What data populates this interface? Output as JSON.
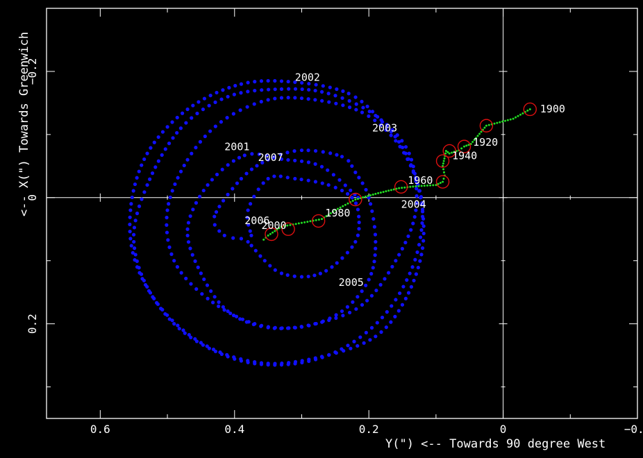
{
  "chart_data": {
    "type": "scatter",
    "xlabel": "Y(\") <-- Towards 90 degree West",
    "ylabel": "<-- X(\") Towards Greenwich",
    "xlim": [
      0.68,
      -0.2
    ],
    "ylim": [
      -0.3,
      0.35
    ],
    "x_ticks": [
      {
        "value": 0.6,
        "label": "0.6"
      },
      {
        "value": 0.4,
        "label": "0.4"
      },
      {
        "value": 0.2,
        "label": "0.2"
      },
      {
        "value": 0,
        "label": "0"
      },
      {
        "value": -0.2,
        "label": "−0.2"
      }
    ],
    "y_ticks": [
      {
        "value": -0.2,
        "label": "−0.2"
      },
      {
        "value": 0,
        "label": "0"
      },
      {
        "value": 0.2,
        "label": "0.2"
      }
    ],
    "grid": "zero-lines",
    "colors": {
      "polar_motion": "#1010ff",
      "secular_drift": "#22dd22",
      "markers": "#dd1010",
      "axes": "#ffffff",
      "background": "#000000"
    },
    "spiral_control": [
      [
        0.216,
        0.0
      ],
      [
        0.27,
        -0.049
      ],
      [
        0.33,
        -0.061
      ],
      [
        0.385,
        -0.067
      ],
      [
        0.44,
        -0.02
      ],
      [
        0.47,
        0.05
      ],
      [
        0.45,
        0.12
      ],
      [
        0.41,
        0.18
      ],
      [
        0.35,
        0.206
      ],
      [
        0.28,
        0.2
      ],
      [
        0.21,
        0.17
      ],
      [
        0.16,
        0.1
      ],
      [
        0.13,
        0.02
      ],
      [
        0.14,
        -0.07
      ],
      [
        0.19,
        -0.13
      ],
      [
        0.26,
        -0.165
      ],
      [
        0.33,
        -0.172
      ],
      [
        0.41,
        -0.16
      ],
      [
        0.48,
        -0.11
      ],
      [
        0.53,
        -0.02
      ],
      [
        0.55,
        0.07
      ],
      [
        0.52,
        0.16
      ],
      [
        0.45,
        0.23
      ],
      [
        0.36,
        0.262
      ],
      [
        0.27,
        0.252
      ],
      [
        0.19,
        0.22
      ],
      [
        0.145,
        0.16
      ],
      [
        0.12,
        0.08
      ],
      [
        0.123,
        0.0
      ],
      [
        0.145,
        -0.07
      ],
      [
        0.18,
        -0.12
      ],
      [
        0.23,
        -0.165
      ],
      [
        0.31,
        -0.183
      ],
      [
        0.39,
        -0.18
      ],
      [
        0.47,
        -0.14
      ],
      [
        0.53,
        -0.07
      ],
      [
        0.555,
        0.02
      ],
      [
        0.545,
        0.11
      ],
      [
        0.49,
        0.2
      ],
      [
        0.41,
        0.252
      ],
      [
        0.33,
        0.265
      ],
      [
        0.25,
        0.245
      ],
      [
        0.18,
        0.19
      ],
      [
        0.135,
        0.11
      ],
      [
        0.12,
        0.03
      ],
      [
        0.13,
        -0.03
      ],
      [
        0.16,
        -0.09
      ],
      [
        0.21,
        -0.135
      ],
      [
        0.28,
        -0.155
      ],
      [
        0.35,
        -0.155
      ],
      [
        0.42,
        -0.12
      ],
      [
        0.47,
        -0.06
      ],
      [
        0.5,
        0.02
      ],
      [
        0.49,
        0.1
      ],
      [
        0.44,
        0.16
      ],
      [
        0.37,
        0.2
      ],
      [
        0.3,
        0.205
      ],
      [
        0.24,
        0.18
      ],
      [
        0.2,
        0.13
      ],
      [
        0.19,
        0.07
      ],
      [
        0.2,
        0.0
      ],
      [
        0.22,
        -0.04
      ],
      [
        0.24,
        -0.065
      ],
      [
        0.3,
        -0.075
      ],
      [
        0.35,
        -0.06
      ],
      [
        0.39,
        -0.03
      ],
      [
        0.43,
        0.03
      ],
      [
        0.415,
        0.06
      ],
      [
        0.39,
        0.065
      ],
      [
        0.38,
        0.07
      ],
      [
        0.355,
        0.1
      ],
      [
        0.33,
        0.12
      ],
      [
        0.29,
        0.125
      ],
      [
        0.255,
        0.11
      ],
      [
        0.22,
        0.07
      ],
      [
        0.215,
        0.03
      ],
      [
        0.225,
        0.0
      ],
      [
        0.26,
        -0.02
      ],
      [
        0.31,
        -0.03
      ],
      [
        0.35,
        -0.03
      ],
      [
        0.38,
        0.02
      ],
      [
        0.375,
        0.06
      ]
    ],
    "drift_path": [
      [
        -0.04,
        -0.14
      ],
      [
        -0.015,
        -0.125
      ],
      [
        0.025,
        -0.114
      ],
      [
        0.048,
        -0.085
      ],
      [
        0.058,
        -0.081
      ],
      [
        0.066,
        -0.075
      ],
      [
        0.08,
        -0.07
      ],
      [
        0.085,
        -0.074
      ],
      [
        0.09,
        -0.05
      ],
      [
        0.087,
        -0.035
      ],
      [
        0.09,
        -0.025
      ],
      [
        0.1,
        -0.02
      ],
      [
        0.13,
        -0.018
      ],
      [
        0.155,
        -0.015
      ],
      [
        0.19,
        -0.006
      ],
      [
        0.22,
        0.003
      ],
      [
        0.25,
        0.02
      ],
      [
        0.27,
        0.034
      ],
      [
        0.3,
        0.04
      ],
      [
        0.33,
        0.046
      ],
      [
        0.35,
        0.06
      ],
      [
        0.36,
        0.07
      ]
    ],
    "markers": [
      [
        -0.04,
        -0.14
      ],
      [
        0.025,
        -0.114
      ],
      [
        0.058,
        -0.081
      ],
      [
        0.08,
        -0.074
      ],
      [
        0.09,
        -0.058
      ],
      [
        0.09,
        -0.025
      ],
      [
        0.152,
        -0.017
      ],
      [
        0.22,
        0.003
      ],
      [
        0.275,
        0.037
      ],
      [
        0.32,
        0.05
      ],
      [
        0.345,
        0.058
      ]
    ],
    "annotations": [
      {
        "text": "2002",
        "x": 0.31,
        "y": -0.185
      },
      {
        "text": "2003",
        "x": 0.195,
        "y": -0.105
      },
      {
        "text": "2001",
        "x": 0.415,
        "y": -0.075
      },
      {
        "text": "2007",
        "x": 0.365,
        "y": -0.058
      },
      {
        "text": "1960",
        "x": 0.142,
        "y": -0.022
      },
      {
        "text": "2004",
        "x": 0.152,
        "y": 0.016
      },
      {
        "text": "1980",
        "x": 0.265,
        "y": 0.03
      },
      {
        "text": "2006",
        "x": 0.385,
        "y": 0.042
      },
      {
        "text": "2000",
        "x": 0.36,
        "y": 0.05
      },
      {
        "text": "2005",
        "x": 0.245,
        "y": 0.14
      },
      {
        "text": "1900",
        "x": -0.055,
        "y": -0.135
      },
      {
        "text": "1920",
        "x": 0.045,
        "y": -0.082
      },
      {
        "text": "1940",
        "x": 0.076,
        "y": -0.061
      }
    ]
  }
}
